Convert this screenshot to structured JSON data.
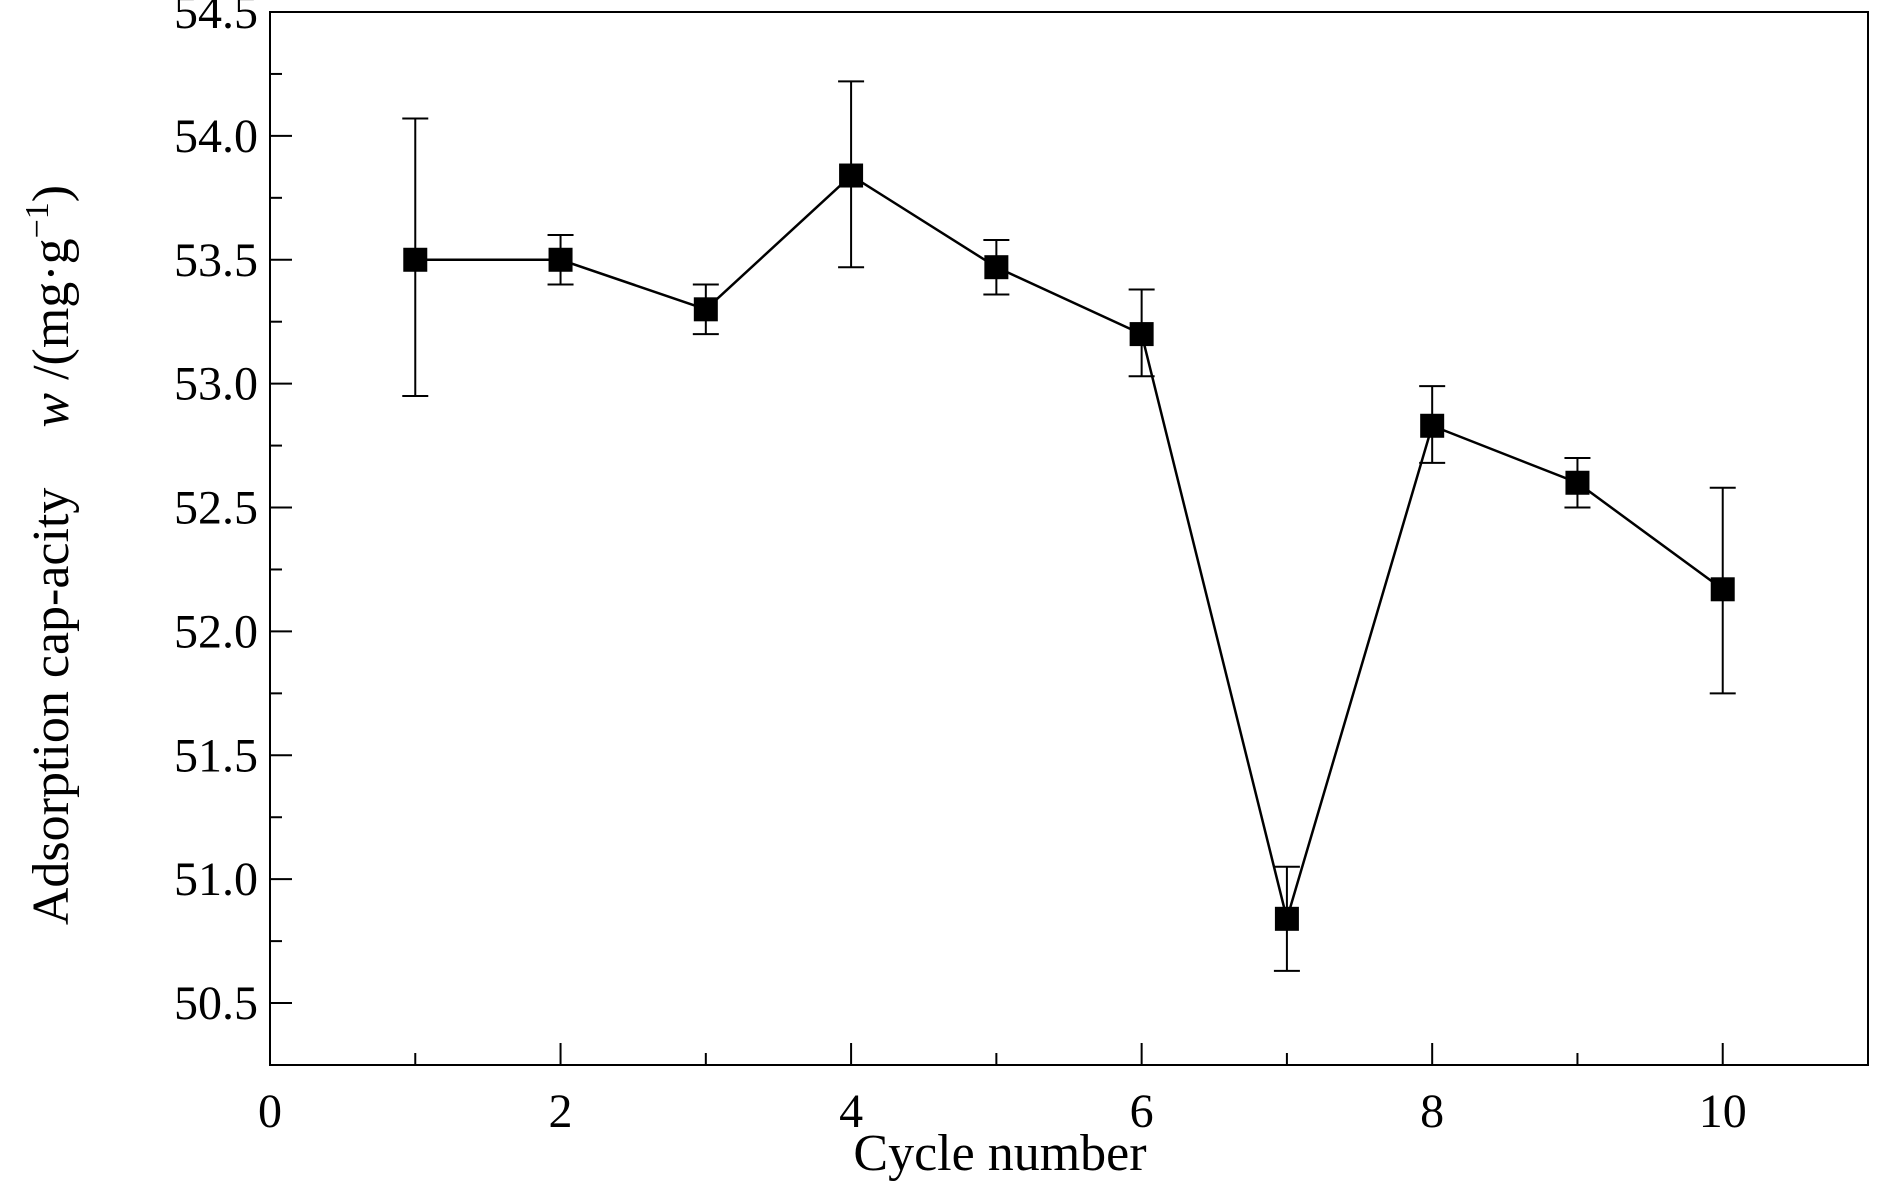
{
  "chart_data": {
    "type": "line",
    "xlabel": "Cycle number",
    "ylabel_parts": [
      "Adsorption cap-acity",
      "w",
      " /(mg·g",
      "−1",
      ")"
    ],
    "xlim": [
      0,
      11
    ],
    "ylim": [
      50.25,
      54.5
    ],
    "xticks": [
      0,
      2,
      4,
      6,
      8,
      10
    ],
    "xtick_labels": [
      "0",
      "2",
      "4",
      "6",
      "8",
      "10"
    ],
    "yticks": [
      50.5,
      51.0,
      51.5,
      52.0,
      52.5,
      53.0,
      53.5,
      54.0,
      54.5
    ],
    "ytick_labels": [
      "50.5",
      "51.0",
      "51.5",
      "52.0",
      "52.5",
      "53.0",
      "53.5",
      "54.0",
      "54.5"
    ],
    "x_minor_ticks": [
      1,
      3,
      5,
      7,
      9
    ],
    "y_minor_ticks": [
      50.75,
      51.25,
      51.75,
      52.25,
      52.75,
      53.25,
      53.75,
      54.25
    ],
    "grid": false,
    "marker": "square",
    "color": "#000000",
    "series": [
      {
        "x": [
          1,
          2,
          3,
          4,
          5,
          6,
          7,
          8,
          9,
          10
        ],
        "y": [
          53.5,
          53.5,
          53.3,
          53.84,
          53.47,
          53.2,
          50.84,
          52.83,
          52.6,
          52.17
        ],
        "err_low": [
          52.95,
          53.4,
          53.2,
          53.47,
          53.36,
          53.03,
          50.63,
          52.68,
          52.5,
          51.75
        ],
        "err_high": [
          54.07,
          53.6,
          53.4,
          54.22,
          53.58,
          53.38,
          51.05,
          52.99,
          52.7,
          52.58
        ]
      }
    ]
  }
}
